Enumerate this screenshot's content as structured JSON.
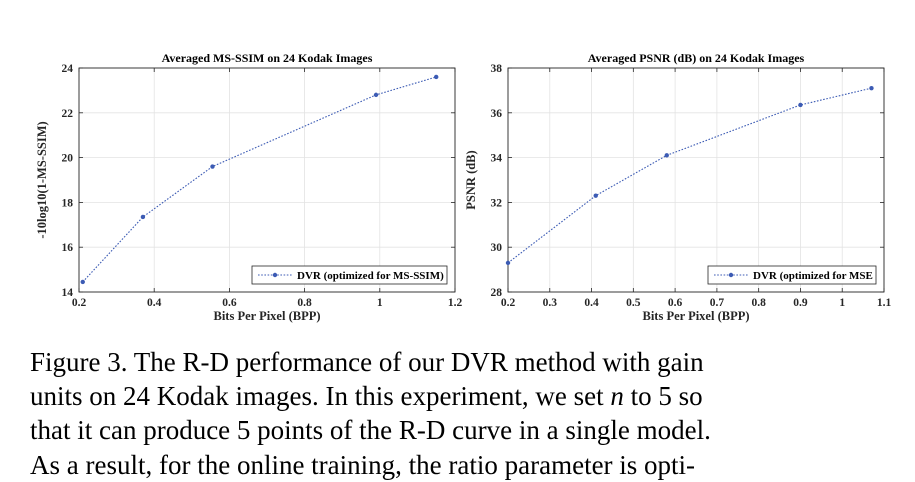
{
  "chart_data": [
    {
      "type": "line",
      "title": "Averaged MS-SSIM on 24 Kodak Images",
      "xlabel": "Bits Per Pixel (BPP)",
      "ylabel": "-10log10(1-MS-SSIM)",
      "xlim": [
        0.2,
        1.2
      ],
      "ylim": [
        14,
        24
      ],
      "xticks": [
        0.2,
        0.4,
        0.6,
        0.8,
        1.0,
        1.2
      ],
      "xtick_labels": [
        "0.2",
        "0.4",
        "0.6",
        "0.8",
        "1",
        "1.2"
      ],
      "yticks": [
        14,
        16,
        18,
        20,
        22,
        24
      ],
      "ytick_labels": [
        "14",
        "16",
        "18",
        "20",
        "22",
        "24"
      ],
      "grid": true,
      "legend_position": "bottom-right",
      "series": [
        {
          "name": "DVR (optimized for MS-SSIM)",
          "color": "#3c5bb4",
          "x": [
            0.21,
            0.37,
            0.555,
            0.99,
            1.15
          ],
          "y": [
            14.45,
            17.35,
            19.6,
            22.8,
            23.6
          ]
        }
      ]
    },
    {
      "type": "line",
      "title": "Averaged PSNR (dB) on 24 Kodak Images",
      "xlabel": "Bits Per Pixel (BPP)",
      "ylabel": "PSNR (dB)",
      "xlim": [
        0.2,
        1.1
      ],
      "ylim": [
        28,
        38
      ],
      "xticks": [
        0.2,
        0.3,
        0.4,
        0.5,
        0.6,
        0.7,
        0.8,
        0.9,
        1.0,
        1.1
      ],
      "xtick_labels": [
        "0.2",
        "0.3",
        "0.4",
        "0.5",
        "0.6",
        "0.7",
        "0.8",
        "0.9",
        "1",
        "1.1"
      ],
      "yticks": [
        28,
        30,
        32,
        34,
        36,
        38
      ],
      "ytick_labels": [
        "28",
        "30",
        "32",
        "34",
        "36",
        "38"
      ],
      "grid": true,
      "legend_position": "bottom-right",
      "series": [
        {
          "name": "DVR (optimized for MSE",
          "color": "#3c5bb4",
          "x": [
            0.2,
            0.41,
            0.58,
            0.9,
            1.07
          ],
          "y": [
            29.3,
            32.3,
            34.1,
            36.35,
            37.1
          ]
        }
      ]
    }
  ],
  "caption": {
    "line1": "Figure 3. The R-D performance of our DVR method with gain",
    "line2_a": "units on 24 Kodak images.  In this experiment, we set ",
    "line2_var": "n",
    "line2_b": " to 5 so",
    "line3": "that it can produce 5 points of the R-D curve in a single model."
  },
  "next_text": "As a result, for the online training, the ratio parameter is opti-"
}
